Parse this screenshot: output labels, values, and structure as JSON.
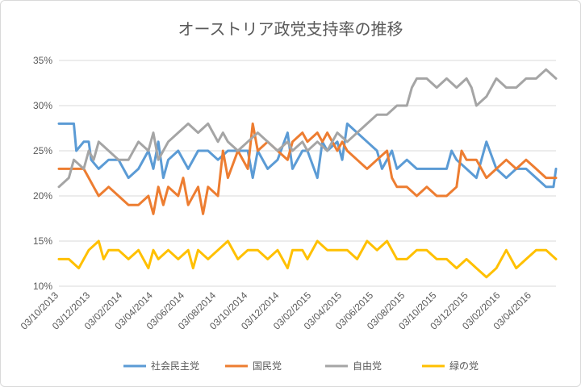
{
  "chart_data": {
    "type": "line",
    "title": "オーストリア政党支持率の推移",
    "y_unit": "%",
    "ylim": [
      10,
      35
    ],
    "yticks": [
      "35%",
      "30%",
      "25%",
      "20%",
      "15%",
      "10%"
    ],
    "ytick_values": [
      35,
      30,
      25,
      20,
      15,
      10
    ],
    "x_start": "2013-10-03",
    "x_end": "2016-05-20",
    "xticks": [
      "03/10/2013",
      "03/12/2013",
      "03/02/2014",
      "03/04/2014",
      "03/06/2014",
      "03/08/2014",
      "03/10/2014",
      "03/12/2014",
      "03/02/2015",
      "03/04/2015",
      "03/06/2015",
      "03/08/2015",
      "03/10/2015",
      "03/12/2015",
      "03/02/2016",
      "03/04/2016"
    ],
    "series": [
      {
        "name": "社会民主党",
        "color": "#5B9BD5",
        "points": [
          [
            0,
            28
          ],
          [
            0.03,
            28
          ],
          [
            0.035,
            25
          ],
          [
            0.05,
            26
          ],
          [
            0.06,
            26
          ],
          [
            0.065,
            24
          ],
          [
            0.08,
            23
          ],
          [
            0.1,
            24
          ],
          [
            0.12,
            24
          ],
          [
            0.14,
            22
          ],
          [
            0.16,
            23
          ],
          [
            0.18,
            25
          ],
          [
            0.19,
            23
          ],
          [
            0.2,
            26
          ],
          [
            0.21,
            22
          ],
          [
            0.22,
            24
          ],
          [
            0.24,
            25
          ],
          [
            0.26,
            23
          ],
          [
            0.28,
            25
          ],
          [
            0.3,
            25
          ],
          [
            0.32,
            24
          ],
          [
            0.34,
            25
          ],
          [
            0.36,
            25
          ],
          [
            0.38,
            25
          ],
          [
            0.39,
            22
          ],
          [
            0.4,
            25
          ],
          [
            0.42,
            23
          ],
          [
            0.44,
            24
          ],
          [
            0.46,
            27
          ],
          [
            0.47,
            23
          ],
          [
            0.49,
            25
          ],
          [
            0.5,
            25
          ],
          [
            0.52,
            22
          ],
          [
            0.53,
            26
          ],
          [
            0.54,
            25
          ],
          [
            0.56,
            26
          ],
          [
            0.57,
            24
          ],
          [
            0.58,
            28
          ],
          [
            0.6,
            27
          ],
          [
            0.62,
            26
          ],
          [
            0.64,
            25
          ],
          [
            0.65,
            23
          ],
          [
            0.67,
            25
          ],
          [
            0.68,
            23
          ],
          [
            0.7,
            24
          ],
          [
            0.72,
            23
          ],
          [
            0.74,
            23
          ],
          [
            0.76,
            23
          ],
          [
            0.78,
            23
          ],
          [
            0.79,
            25
          ],
          [
            0.8,
            24
          ],
          [
            0.82,
            23
          ],
          [
            0.84,
            22
          ],
          [
            0.86,
            26
          ],
          [
            0.88,
            23
          ],
          [
            0.9,
            22
          ],
          [
            0.92,
            23
          ],
          [
            0.94,
            23
          ],
          [
            0.96,
            22
          ],
          [
            0.98,
            21
          ],
          [
            0.995,
            21
          ],
          [
            1,
            23
          ]
        ]
      },
      {
        "name": "国民党",
        "color": "#ED7D31",
        "points": [
          [
            0,
            23
          ],
          [
            0.03,
            23
          ],
          [
            0.05,
            23
          ],
          [
            0.06,
            22
          ],
          [
            0.07,
            21
          ],
          [
            0.08,
            20
          ],
          [
            0.1,
            21
          ],
          [
            0.12,
            20
          ],
          [
            0.14,
            19
          ],
          [
            0.16,
            19
          ],
          [
            0.18,
            20
          ],
          [
            0.19,
            18
          ],
          [
            0.2,
            21
          ],
          [
            0.21,
            19
          ],
          [
            0.22,
            21
          ],
          [
            0.24,
            20
          ],
          [
            0.25,
            22
          ],
          [
            0.26,
            19
          ],
          [
            0.28,
            21
          ],
          [
            0.29,
            18
          ],
          [
            0.3,
            21
          ],
          [
            0.32,
            20
          ],
          [
            0.33,
            25
          ],
          [
            0.34,
            22
          ],
          [
            0.36,
            25
          ],
          [
            0.38,
            23
          ],
          [
            0.39,
            28
          ],
          [
            0.4,
            25
          ],
          [
            0.42,
            26
          ],
          [
            0.44,
            25
          ],
          [
            0.46,
            24
          ],
          [
            0.47,
            26
          ],
          [
            0.49,
            27
          ],
          [
            0.5,
            26
          ],
          [
            0.52,
            27
          ],
          [
            0.53,
            26
          ],
          [
            0.54,
            27
          ],
          [
            0.56,
            25
          ],
          [
            0.57,
            26
          ],
          [
            0.58,
            25
          ],
          [
            0.6,
            24
          ],
          [
            0.62,
            23
          ],
          [
            0.64,
            24
          ],
          [
            0.66,
            25
          ],
          [
            0.67,
            22
          ],
          [
            0.68,
            21
          ],
          [
            0.7,
            21
          ],
          [
            0.72,
            20
          ],
          [
            0.74,
            21
          ],
          [
            0.76,
            20
          ],
          [
            0.78,
            20
          ],
          [
            0.8,
            21
          ],
          [
            0.81,
            25
          ],
          [
            0.82,
            24
          ],
          [
            0.84,
            24
          ],
          [
            0.86,
            22
          ],
          [
            0.88,
            23
          ],
          [
            0.9,
            24
          ],
          [
            0.92,
            23
          ],
          [
            0.94,
            24
          ],
          [
            0.96,
            23
          ],
          [
            0.98,
            22
          ],
          [
            1,
            22
          ]
        ]
      },
      {
        "name": "自由党",
        "color": "#A5A5A5",
        "points": [
          [
            0,
            21
          ],
          [
            0.02,
            22
          ],
          [
            0.03,
            24
          ],
          [
            0.05,
            23
          ],
          [
            0.06,
            25
          ],
          [
            0.07,
            24
          ],
          [
            0.08,
            26
          ],
          [
            0.1,
            25
          ],
          [
            0.12,
            24
          ],
          [
            0.14,
            24
          ],
          [
            0.16,
            26
          ],
          [
            0.18,
            25
          ],
          [
            0.19,
            27
          ],
          [
            0.2,
            24
          ],
          [
            0.22,
            26
          ],
          [
            0.24,
            27
          ],
          [
            0.26,
            28
          ],
          [
            0.28,
            27
          ],
          [
            0.3,
            28
          ],
          [
            0.32,
            26
          ],
          [
            0.33,
            27
          ],
          [
            0.34,
            26
          ],
          [
            0.36,
            25
          ],
          [
            0.38,
            26
          ],
          [
            0.4,
            27
          ],
          [
            0.42,
            26
          ],
          [
            0.44,
            25
          ],
          [
            0.46,
            26
          ],
          [
            0.47,
            25
          ],
          [
            0.49,
            26
          ],
          [
            0.5,
            25
          ],
          [
            0.52,
            26
          ],
          [
            0.54,
            25
          ],
          [
            0.56,
            27
          ],
          [
            0.58,
            26
          ],
          [
            0.6,
            27
          ],
          [
            0.62,
            28
          ],
          [
            0.64,
            29
          ],
          [
            0.66,
            29
          ],
          [
            0.68,
            30
          ],
          [
            0.7,
            30
          ],
          [
            0.71,
            32
          ],
          [
            0.72,
            33
          ],
          [
            0.74,
            33
          ],
          [
            0.76,
            32
          ],
          [
            0.78,
            33
          ],
          [
            0.8,
            32
          ],
          [
            0.82,
            33
          ],
          [
            0.83,
            32
          ],
          [
            0.84,
            30
          ],
          [
            0.86,
            31
          ],
          [
            0.88,
            33
          ],
          [
            0.9,
            32
          ],
          [
            0.92,
            32
          ],
          [
            0.94,
            33
          ],
          [
            0.96,
            33
          ],
          [
            0.98,
            34
          ],
          [
            1,
            33
          ]
        ]
      },
      {
        "name": "緑の党",
        "color": "#FFC000",
        "points": [
          [
            0,
            13
          ],
          [
            0.02,
            13
          ],
          [
            0.04,
            12
          ],
          [
            0.06,
            14
          ],
          [
            0.08,
            15
          ],
          [
            0.09,
            13
          ],
          [
            0.1,
            14
          ],
          [
            0.12,
            14
          ],
          [
            0.14,
            13
          ],
          [
            0.16,
            14
          ],
          [
            0.18,
            12
          ],
          [
            0.19,
            14
          ],
          [
            0.2,
            13
          ],
          [
            0.22,
            14
          ],
          [
            0.24,
            13
          ],
          [
            0.26,
            14
          ],
          [
            0.27,
            12
          ],
          [
            0.28,
            14
          ],
          [
            0.3,
            13
          ],
          [
            0.32,
            14
          ],
          [
            0.34,
            15
          ],
          [
            0.36,
            13
          ],
          [
            0.38,
            14
          ],
          [
            0.4,
            14
          ],
          [
            0.42,
            13
          ],
          [
            0.44,
            14
          ],
          [
            0.46,
            12
          ],
          [
            0.47,
            14
          ],
          [
            0.49,
            14
          ],
          [
            0.5,
            13
          ],
          [
            0.52,
            15
          ],
          [
            0.54,
            14
          ],
          [
            0.56,
            14
          ],
          [
            0.58,
            14
          ],
          [
            0.6,
            13
          ],
          [
            0.62,
            15
          ],
          [
            0.64,
            14
          ],
          [
            0.66,
            15
          ],
          [
            0.68,
            13
          ],
          [
            0.7,
            13
          ],
          [
            0.72,
            14
          ],
          [
            0.74,
            14
          ],
          [
            0.76,
            13
          ],
          [
            0.78,
            13
          ],
          [
            0.8,
            12
          ],
          [
            0.82,
            13
          ],
          [
            0.84,
            12
          ],
          [
            0.86,
            11
          ],
          [
            0.88,
            12
          ],
          [
            0.9,
            14
          ],
          [
            0.92,
            12
          ],
          [
            0.94,
            13
          ],
          [
            0.96,
            14
          ],
          [
            0.98,
            14
          ],
          [
            1,
            13
          ]
        ]
      }
    ]
  }
}
